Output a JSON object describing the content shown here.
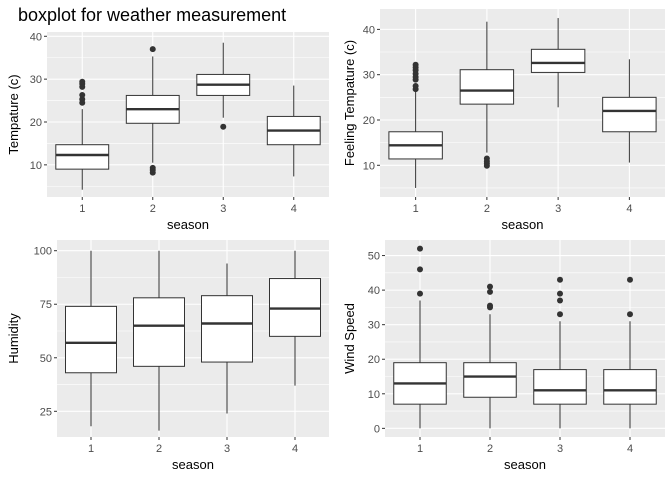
{
  "title": "boxplot for weather measurement",
  "chart_data": [
    {
      "type": "boxplot",
      "xlabel": "season",
      "ylabel": "Tempature (c)",
      "categories": [
        "1",
        "2",
        "3",
        "4"
      ],
      "ylim": [
        2.5,
        41
      ],
      "yticks": [
        10,
        20,
        30,
        40
      ],
      "grid": true,
      "boxes": [
        {
          "q1": 9,
          "median": 12.3,
          "q3": 14.7,
          "whisker_low": 4.2,
          "whisker_high": 23,
          "outliers": [
            24.5,
            25.3,
            26.3,
            28.2,
            28.9,
            29.4
          ]
        },
        {
          "q1": 19.7,
          "median": 23,
          "q3": 26.2,
          "whisker_low": 10.5,
          "whisker_high": 35.3,
          "outliers": [
            8.2,
            8.8,
            9.3,
            37
          ]
        },
        {
          "q1": 26.2,
          "median": 28.7,
          "q3": 31.1,
          "whisker_low": 21,
          "whisker_high": 38.5,
          "outliers": [
            18.9
          ]
        },
        {
          "q1": 14.7,
          "median": 18,
          "q3": 21.3,
          "whisker_low": 7.3,
          "whisker_high": 28.5,
          "outliers": []
        }
      ]
    },
    {
      "type": "boxplot",
      "xlabel": "season",
      "ylabel": "Feeling Tempature (c)",
      "categories": [
        "1",
        "2",
        "3",
        "4"
      ],
      "ylim": [
        3,
        44.5
      ],
      "yticks": [
        10,
        20,
        30,
        40
      ],
      "grid": true,
      "boxes": [
        {
          "q1": 11.4,
          "median": 14.4,
          "q3": 17.4,
          "whisker_low": 5,
          "whisker_high": 26.3,
          "outliers": [
            26.8,
            27.5,
            28.9,
            29.5,
            30.2,
            31,
            31.6,
            32.2
          ]
        },
        {
          "q1": 23.5,
          "median": 26.5,
          "q3": 31.1,
          "whisker_low": 12.8,
          "whisker_high": 41.7,
          "outliers": [
            9.9,
            10.4,
            10.9,
            11.5
          ]
        },
        {
          "q1": 30.5,
          "median": 32.6,
          "q3": 35.6,
          "whisker_low": 22.8,
          "whisker_high": 42.5,
          "outliers": []
        },
        {
          "q1": 17.4,
          "median": 22,
          "q3": 25,
          "whisker_low": 10.6,
          "whisker_high": 33.4,
          "outliers": []
        }
      ]
    },
    {
      "type": "boxplot",
      "xlabel": "season",
      "ylabel": "Humidity",
      "categories": [
        "1",
        "2",
        "3",
        "4"
      ],
      "ylim": [
        13,
        105
      ],
      "yticks": [
        25,
        50,
        75,
        100
      ],
      "grid": true,
      "boxes": [
        {
          "q1": 43,
          "median": 57,
          "q3": 74,
          "whisker_low": 18,
          "whisker_high": 100,
          "outliers": []
        },
        {
          "q1": 46,
          "median": 65,
          "q3": 78,
          "whisker_low": 16,
          "whisker_high": 100,
          "outliers": []
        },
        {
          "q1": 48,
          "median": 66,
          "q3": 79,
          "whisker_low": 24,
          "whisker_high": 94,
          "outliers": []
        },
        {
          "q1": 60,
          "median": 73,
          "q3": 87,
          "whisker_low": 37,
          "whisker_high": 100,
          "outliers": []
        }
      ]
    },
    {
      "type": "boxplot",
      "xlabel": "season",
      "ylabel": "Wind Speed",
      "categories": [
        "1",
        "2",
        "3",
        "4"
      ],
      "ylim": [
        -2.5,
        54.5
      ],
      "yticks": [
        0,
        10,
        20,
        30,
        40,
        50
      ],
      "grid": true,
      "boxes": [
        {
          "q1": 7,
          "median": 13,
          "q3": 19,
          "whisker_low": 0,
          "whisker_high": 37,
          "outliers": [
            39,
            46,
            52
          ]
        },
        {
          "q1": 9,
          "median": 15,
          "q3": 19,
          "whisker_low": 0,
          "whisker_high": 33,
          "outliers": [
            35,
            35.5,
            39.5,
            41
          ]
        },
        {
          "q1": 7,
          "median": 11,
          "q3": 17,
          "whisker_low": 0,
          "whisker_high": 31,
          "outliers": [
            33,
            37,
            39,
            43
          ]
        },
        {
          "q1": 7,
          "median": 11,
          "q3": 17,
          "whisker_low": 0,
          "whisker_high": 31,
          "outliers": [
            33,
            43
          ]
        }
      ]
    }
  ]
}
